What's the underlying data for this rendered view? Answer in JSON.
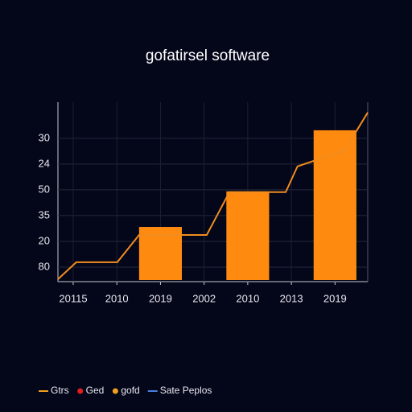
{
  "chart_data": {
    "type": "bar",
    "title": "gofatirsel software",
    "categories": [
      "20115",
      "2010",
      "2019",
      "2002",
      "2010",
      "2013",
      "2019"
    ],
    "xlim": [
      -0.35,
      6.75
    ],
    "ylim": [
      -0.5,
      6.4
    ],
    "yticks": [
      {
        "value": 0,
        "label": "80"
      },
      {
        "value": 1,
        "label": "20"
      },
      {
        "value": 2,
        "label": "35"
      },
      {
        "value": 3,
        "label": "50"
      },
      {
        "value": 4,
        "label": "24"
      },
      {
        "value": 5,
        "label": "30"
      }
    ],
    "grid": true,
    "series": [
      {
        "type": "bar",
        "color": "#ff8a10",
        "values": [
          null,
          null,
          1.56,
          null,
          2.94,
          null,
          5.31
        ]
      },
      {
        "type": "line",
        "color": "#f08c1e",
        "x": [
          -0.35,
          0.07,
          1.01,
          1.51,
          3.06,
          3.58,
          4.87,
          5.14,
          6.22,
          6.75
        ],
        "values": [
          -0.47,
          0.19,
          0.19,
          1.25,
          1.25,
          2.91,
          2.91,
          3.91,
          4.53,
          6.0
        ]
      }
    ],
    "legend": [
      {
        "name": "Gtrs",
        "color": "#f0a020",
        "marker": "line"
      },
      {
        "name": "Ged",
        "color": "#e0201a",
        "marker": "dot"
      },
      {
        "name": "gofd",
        "color": "#f0a020",
        "marker": "dot"
      },
      {
        "name": "Sate Peplos",
        "color": "#4a7fe0",
        "marker": "line"
      }
    ]
  }
}
